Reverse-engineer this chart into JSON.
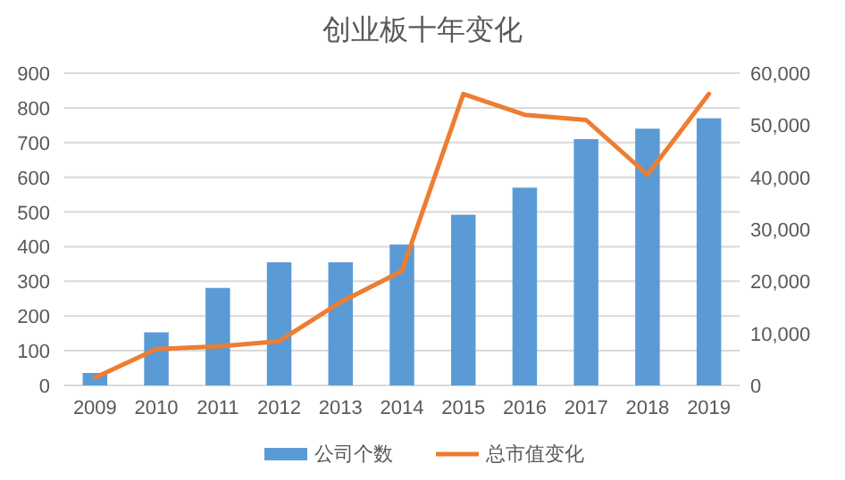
{
  "chart_data": {
    "type": "bar",
    "title": "创业板十年变化",
    "categories": [
      "2009",
      "2010",
      "2011",
      "2012",
      "2013",
      "2014",
      "2015",
      "2016",
      "2017",
      "2018",
      "2019"
    ],
    "series": [
      {
        "name": "公司个数",
        "color": "#5b9bd5",
        "values": [
          36,
          153,
          281,
          355,
          355,
          406,
          492,
          570,
          710,
          740,
          770
        ]
      },
      {
        "name": "总市值变化",
        "type": "line",
        "axis": "y2",
        "color": "#ed7d31",
        "values": [
          1500,
          7000,
          7500,
          8500,
          16000,
          22000,
          56000,
          52000,
          51000,
          40500,
          56000
        ]
      }
    ],
    "ylim": [
      0,
      900
    ],
    "yticks": [
      0,
      100,
      200,
      300,
      400,
      500,
      600,
      700,
      800,
      900
    ],
    "y2lim": [
      0,
      60000
    ],
    "y2ticks": [
      0,
      {
        "value": 10000,
        "label": "10,000"
      },
      {
        "value": 20000,
        "label": "20,000"
      },
      {
        "value": 30000,
        "label": "30,000"
      },
      {
        "value": 40000,
        "label": "40,000"
      },
      {
        "value": 50000,
        "label": "50,000"
      },
      {
        "value": 60000,
        "label": "60,000"
      }
    ],
    "grid": "y",
    "legend": "bottom"
  }
}
